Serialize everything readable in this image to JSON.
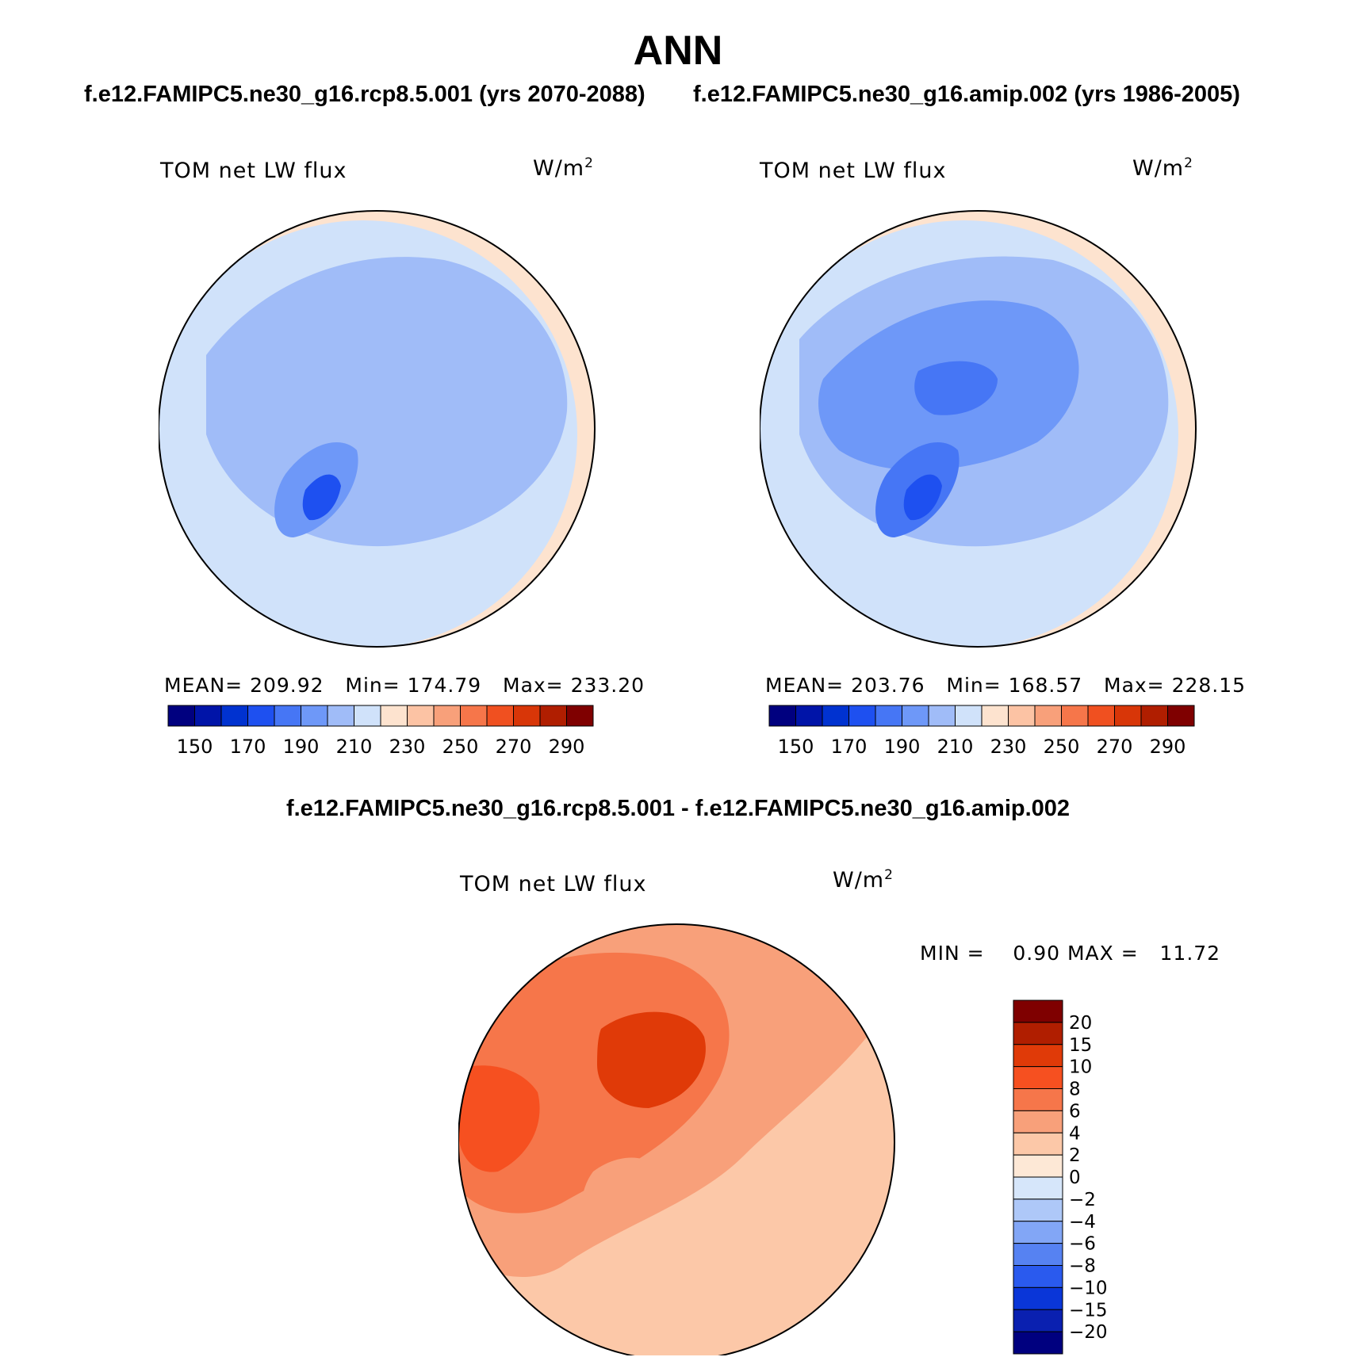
{
  "main_title": "ANN",
  "panels": [
    {
      "subtitle": "f.e12.FAMIPC5.ne30_g16.rcp8.5.001 (yrs 2070-2088)",
      "variable": "TOM net LW flux",
      "units": "W/m",
      "units_sup": "2",
      "mean_label": "MEAN=",
      "mean": "209.92",
      "min_label": "Min=",
      "min": "174.79",
      "max_label": "Max=",
      "max": "233.20"
    },
    {
      "subtitle": "f.e12.FAMIPC5.ne30_g16.amip.002 (yrs 1986-2005)",
      "variable": "TOM net LW flux",
      "units": "W/m",
      "units_sup": "2",
      "mean_label": "MEAN=",
      "mean": "203.76",
      "min_label": "Min=",
      "min": "168.57",
      "max_label": "Max=",
      "max": "228.15"
    }
  ],
  "difference": {
    "subtitle": "f.e12.FAMIPC5.ne30_g16.rcp8.5.001 - f.e12.FAMIPC5.ne30_g16.amip.002",
    "variable": "TOM net LW flux",
    "units": "W/m",
    "units_sup": "2",
    "min_label": "MIN =",
    "min": "0.90",
    "max_label": "MAX =",
    "max": "11.72"
  },
  "chart_data": [
    {
      "type": "heatmap",
      "projection": "north-polar-stereographic",
      "title": "TOM net LW flux",
      "units": "W/m2",
      "colorbar": {
        "orientation": "horizontal",
        "tick_labels": [
          "150",
          "170",
          "190",
          "210",
          "230",
          "250",
          "270",
          "290"
        ],
        "levels": [
          140,
          150,
          160,
          170,
          180,
          190,
          200,
          210,
          220,
          230,
          240,
          250,
          260,
          270,
          280,
          290
        ],
        "colors": [
          "#00007f",
          "#0014a8",
          "#0032d0",
          "#1e50f0",
          "#4676f5",
          "#6e98f8",
          "#a0bcf8",
          "#d0e2fa",
          "#fde3cf",
          "#fcc3a4",
          "#f8a07a",
          "#f6764a",
          "#f05020",
          "#d83608",
          "#b01e00",
          "#7f0000"
        ]
      },
      "stats": {
        "mean": 209.92,
        "min": 174.79,
        "max": 233.2
      }
    },
    {
      "type": "heatmap",
      "projection": "north-polar-stereographic",
      "title": "TOM net LW flux",
      "units": "W/m2",
      "colorbar": {
        "orientation": "horizontal",
        "tick_labels": [
          "150",
          "170",
          "190",
          "210",
          "230",
          "250",
          "270",
          "290"
        ],
        "levels": [
          140,
          150,
          160,
          170,
          180,
          190,
          200,
          210,
          220,
          230,
          240,
          250,
          260,
          270,
          280,
          290
        ],
        "colors": [
          "#00007f",
          "#0014a8",
          "#0032d0",
          "#1e50f0",
          "#4676f5",
          "#6e98f8",
          "#a0bcf8",
          "#d0e2fa",
          "#fde3cf",
          "#fcc3a4",
          "#f8a07a",
          "#f6764a",
          "#f05020",
          "#d83608",
          "#b01e00",
          "#7f0000"
        ]
      },
      "stats": {
        "mean": 203.76,
        "min": 168.57,
        "max": 228.15
      }
    },
    {
      "type": "heatmap",
      "projection": "north-polar-stereographic",
      "title": "TOM net LW flux",
      "units": "W/m2",
      "colorbar": {
        "orientation": "vertical",
        "tick_labels": [
          "20",
          "15",
          "10",
          "8",
          "6",
          "4",
          "2",
          "0",
          "−2",
          "−4",
          "−6",
          "−8",
          "−10",
          "−15",
          "−20"
        ],
        "colors_top_to_bottom": [
          "#7f0000",
          "#b01e00",
          "#e03a08",
          "#f65020",
          "#f6764a",
          "#f8a07a",
          "#fcc8a8",
          "#fde8d6",
          "#d6e6fa",
          "#aec8f8",
          "#82a6f6",
          "#5682f2",
          "#2a5aee",
          "#0a36d8",
          "#0a20b0",
          "#00007f"
        ]
      },
      "stats": {
        "min": 0.9,
        "max": 11.72
      }
    }
  ]
}
